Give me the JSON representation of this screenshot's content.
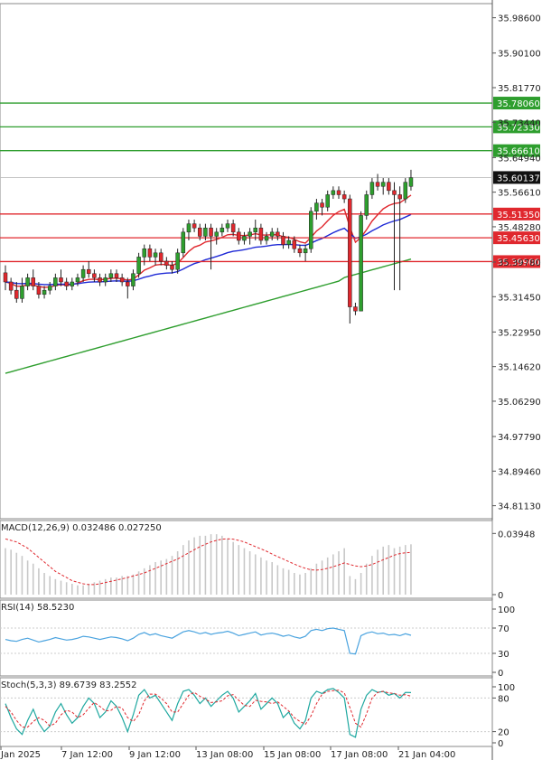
{
  "chart_data": {
    "type": "candlestick",
    "main_panel": {
      "price_axis_ticks": [
        "35.98600",
        "35.90100",
        "35.81770",
        "35.73440",
        "35.64940",
        "35.56610",
        "35.48280",
        "35.39780",
        "35.31450",
        "35.22950",
        "35.14620",
        "35.06290",
        "34.97790",
        "34.89460",
        "34.81130"
      ],
      "ylim": [
        34.78,
        36.02
      ],
      "current_price_label": "35.60137",
      "resistance_levels": [
        {
          "label": "35.78060",
          "value": 35.7806,
          "color": "#2e9e2e"
        },
        {
          "label": "35.72330",
          "value": 35.7233,
          "color": "#2e9e2e"
        },
        {
          "label": "35.66610",
          "value": 35.6661,
          "color": "#2e9e2e"
        }
      ],
      "support_levels": [
        {
          "label": "35.51350",
          "value": 35.5135,
          "color": "#e0282e"
        },
        {
          "label": "35.45630",
          "value": 35.4563,
          "color": "#e0282e"
        },
        {
          "label": "35.39900",
          "value": 35.399,
          "color": "#e0282e"
        }
      ],
      "candles": [
        {
          "o": 35.372,
          "h": 35.39,
          "l": 35.33,
          "c": 35.35
        },
        {
          "o": 35.35,
          "h": 35.36,
          "l": 35.32,
          "c": 35.33
        },
        {
          "o": 35.33,
          "h": 35.35,
          "l": 35.3,
          "c": 35.31
        },
        {
          "o": 35.31,
          "h": 35.36,
          "l": 35.3,
          "c": 35.34
        },
        {
          "o": 35.34,
          "h": 35.37,
          "l": 35.33,
          "c": 35.36
        },
        {
          "o": 35.36,
          "h": 35.38,
          "l": 35.33,
          "c": 35.34
        },
        {
          "o": 35.34,
          "h": 35.35,
          "l": 35.31,
          "c": 35.32
        },
        {
          "o": 35.32,
          "h": 35.34,
          "l": 35.31,
          "c": 35.33
        },
        {
          "o": 35.33,
          "h": 35.35,
          "l": 35.32,
          "c": 35.34
        },
        {
          "o": 35.34,
          "h": 35.37,
          "l": 35.33,
          "c": 35.36
        },
        {
          "o": 35.36,
          "h": 35.38,
          "l": 35.34,
          "c": 35.35
        },
        {
          "o": 35.35,
          "h": 35.36,
          "l": 35.33,
          "c": 35.34
        },
        {
          "o": 35.34,
          "h": 35.36,
          "l": 35.33,
          "c": 35.35
        },
        {
          "o": 35.35,
          "h": 35.37,
          "l": 35.34,
          "c": 35.36
        },
        {
          "o": 35.36,
          "h": 35.39,
          "l": 35.35,
          "c": 35.38
        },
        {
          "o": 35.38,
          "h": 35.4,
          "l": 35.36,
          "c": 35.37
        },
        {
          "o": 35.37,
          "h": 35.38,
          "l": 35.35,
          "c": 35.36
        },
        {
          "o": 35.36,
          "h": 35.37,
          "l": 35.34,
          "c": 35.35
        },
        {
          "o": 35.35,
          "h": 35.37,
          "l": 35.34,
          "c": 35.36
        },
        {
          "o": 35.36,
          "h": 35.38,
          "l": 35.35,
          "c": 35.37
        },
        {
          "o": 35.37,
          "h": 35.38,
          "l": 35.35,
          "c": 35.36
        },
        {
          "o": 35.36,
          "h": 35.37,
          "l": 35.34,
          "c": 35.35
        },
        {
          "o": 35.35,
          "h": 35.36,
          "l": 35.31,
          "c": 35.34
        },
        {
          "o": 35.34,
          "h": 35.38,
          "l": 35.33,
          "c": 35.37
        },
        {
          "o": 35.37,
          "h": 35.42,
          "l": 35.36,
          "c": 35.41
        },
        {
          "o": 35.41,
          "h": 35.44,
          "l": 35.39,
          "c": 35.43
        },
        {
          "o": 35.43,
          "h": 35.44,
          "l": 35.4,
          "c": 35.41
        },
        {
          "o": 35.41,
          "h": 35.43,
          "l": 35.39,
          "c": 35.42
        },
        {
          "o": 35.42,
          "h": 35.43,
          "l": 35.39,
          "c": 35.4
        },
        {
          "o": 35.4,
          "h": 35.41,
          "l": 35.38,
          "c": 35.39
        },
        {
          "o": 35.39,
          "h": 35.4,
          "l": 35.37,
          "c": 35.38
        },
        {
          "o": 35.38,
          "h": 35.43,
          "l": 35.37,
          "c": 35.42
        },
        {
          "o": 35.42,
          "h": 35.48,
          "l": 35.41,
          "c": 35.47
        },
        {
          "o": 35.47,
          "h": 35.5,
          "l": 35.45,
          "c": 35.49
        },
        {
          "o": 35.49,
          "h": 35.5,
          "l": 35.47,
          "c": 35.48
        },
        {
          "o": 35.48,
          "h": 35.49,
          "l": 35.45,
          "c": 35.46
        },
        {
          "o": 35.46,
          "h": 35.49,
          "l": 35.45,
          "c": 35.48
        },
        {
          "o": 35.48,
          "h": 35.49,
          "l": 35.38,
          "c": 35.46
        },
        {
          "o": 35.46,
          "h": 35.48,
          "l": 35.44,
          "c": 35.47
        },
        {
          "o": 35.47,
          "h": 35.49,
          "l": 35.46,
          "c": 35.48
        },
        {
          "o": 35.48,
          "h": 35.5,
          "l": 35.47,
          "c": 35.49
        },
        {
          "o": 35.49,
          "h": 35.5,
          "l": 35.46,
          "c": 35.47
        },
        {
          "o": 35.47,
          "h": 35.48,
          "l": 35.44,
          "c": 35.45
        },
        {
          "o": 35.45,
          "h": 35.47,
          "l": 35.44,
          "c": 35.46
        },
        {
          "o": 35.46,
          "h": 35.48,
          "l": 35.44,
          "c": 35.47
        },
        {
          "o": 35.47,
          "h": 35.5,
          "l": 35.45,
          "c": 35.48
        },
        {
          "o": 35.48,
          "h": 35.49,
          "l": 35.44,
          "c": 35.45
        },
        {
          "o": 35.45,
          "h": 35.47,
          "l": 35.44,
          "c": 35.46
        },
        {
          "o": 35.46,
          "h": 35.48,
          "l": 35.45,
          "c": 35.47
        },
        {
          "o": 35.47,
          "h": 35.48,
          "l": 35.45,
          "c": 35.46
        },
        {
          "o": 35.46,
          "h": 35.47,
          "l": 35.43,
          "c": 35.44
        },
        {
          "o": 35.44,
          "h": 35.46,
          "l": 35.43,
          "c": 35.45
        },
        {
          "o": 35.45,
          "h": 35.46,
          "l": 35.42,
          "c": 35.43
        },
        {
          "o": 35.43,
          "h": 35.44,
          "l": 35.41,
          "c": 35.42
        },
        {
          "o": 35.42,
          "h": 35.44,
          "l": 35.4,
          "c": 35.43
        },
        {
          "o": 35.43,
          "h": 35.53,
          "l": 35.42,
          "c": 35.52
        },
        {
          "o": 35.52,
          "h": 35.55,
          "l": 35.5,
          "c": 35.54
        },
        {
          "o": 35.54,
          "h": 35.55,
          "l": 35.51,
          "c": 35.53
        },
        {
          "o": 35.53,
          "h": 35.57,
          "l": 35.52,
          "c": 35.56
        },
        {
          "o": 35.56,
          "h": 35.58,
          "l": 35.55,
          "c": 35.57
        },
        {
          "o": 35.57,
          "h": 35.58,
          "l": 35.55,
          "c": 35.56
        },
        {
          "o": 35.56,
          "h": 35.57,
          "l": 35.54,
          "c": 35.55
        },
        {
          "o": 35.55,
          "h": 35.56,
          "l": 35.25,
          "c": 35.29
        },
        {
          "o": 35.29,
          "h": 35.3,
          "l": 35.27,
          "c": 35.28
        },
        {
          "o": 35.28,
          "h": 35.52,
          "l": 35.28,
          "c": 35.51
        },
        {
          "o": 35.51,
          "h": 35.57,
          "l": 35.5,
          "c": 35.56
        },
        {
          "o": 35.56,
          "h": 35.6,
          "l": 35.55,
          "c": 35.59
        },
        {
          "o": 35.59,
          "h": 35.61,
          "l": 35.57,
          "c": 35.58
        },
        {
          "o": 35.58,
          "h": 35.6,
          "l": 35.56,
          "c": 35.59
        },
        {
          "o": 35.59,
          "h": 35.6,
          "l": 35.56,
          "c": 35.57
        },
        {
          "o": 35.57,
          "h": 35.59,
          "l": 35.33,
          "c": 35.56
        },
        {
          "o": 35.56,
          "h": 35.58,
          "l": 35.33,
          "c": 35.55
        },
        {
          "o": 35.55,
          "h": 35.6,
          "l": 35.54,
          "c": 35.59
        },
        {
          "o": 35.58,
          "h": 35.62,
          "l": 35.57,
          "c": 35.601
        }
      ]
    },
    "macd_panel": {
      "label": "MACD(12,26,9) 0.032486 0.027250",
      "axis_ticks": [
        "0.03948",
        "0"
      ],
      "ylim": [
        0,
        0.042
      ],
      "histogram": [
        0.03,
        0.029,
        0.027,
        0.025,
        0.022,
        0.02,
        0.017,
        0.014,
        0.012,
        0.01,
        0.009,
        0.008,
        0.007,
        0.006,
        0.006,
        0.007,
        0.008,
        0.009,
        0.01,
        0.011,
        0.011,
        0.012,
        0.012,
        0.013,
        0.015,
        0.017,
        0.019,
        0.021,
        0.022,
        0.023,
        0.025,
        0.028,
        0.032,
        0.035,
        0.037,
        0.038,
        0.038,
        0.039,
        0.039,
        0.038,
        0.036,
        0.034,
        0.032,
        0.03,
        0.028,
        0.026,
        0.024,
        0.022,
        0.021,
        0.019,
        0.017,
        0.016,
        0.014,
        0.013,
        0.014,
        0.017,
        0.02,
        0.022,
        0.024,
        0.026,
        0.028,
        0.03,
        0.012,
        0.01,
        0.014,
        0.02,
        0.025,
        0.029,
        0.031,
        0.032,
        0.03,
        0.031,
        0.032,
        0.0325
      ],
      "signal": [
        0.036,
        0.035,
        0.034,
        0.032,
        0.03,
        0.027,
        0.024,
        0.021,
        0.018,
        0.015,
        0.013,
        0.011,
        0.009,
        0.008,
        0.007,
        0.0065,
        0.0065,
        0.007,
        0.0078,
        0.0086,
        0.0094,
        0.0102,
        0.011,
        0.012,
        0.013,
        0.014,
        0.0155,
        0.017,
        0.0185,
        0.02,
        0.0215,
        0.023,
        0.025,
        0.027,
        0.029,
        0.031,
        0.0325,
        0.034,
        0.035,
        0.0358,
        0.036,
        0.0358,
        0.035,
        0.034,
        0.0325,
        0.031,
        0.0295,
        0.028,
        0.0262,
        0.0245,
        0.023,
        0.0213,
        0.0197,
        0.0182,
        0.017,
        0.016,
        0.0158,
        0.0162,
        0.017,
        0.018,
        0.0192,
        0.0205,
        0.0195,
        0.0185,
        0.018,
        0.0185,
        0.0195,
        0.021,
        0.0225,
        0.024,
        0.0255,
        0.0265,
        0.027,
        0.02725
      ]
    },
    "rsi_panel": {
      "label": "RSI(14) 58.5230",
      "axis_ticks": [
        "100",
        "70",
        "30",
        "0"
      ],
      "ylim": [
        0,
        100
      ],
      "values": [
        52,
        50,
        49,
        52,
        54,
        51,
        48,
        50,
        52,
        55,
        53,
        51,
        52,
        54,
        57,
        56,
        54,
        52,
        54,
        56,
        55,
        53,
        50,
        54,
        60,
        63,
        59,
        61,
        58,
        56,
        54,
        59,
        64,
        66,
        64,
        61,
        63,
        60,
        62,
        63,
        65,
        62,
        58,
        60,
        62,
        64,
        59,
        61,
        62,
        60,
        57,
        59,
        56,
        54,
        57,
        66,
        68,
        66,
        69,
        70,
        68,
        66,
        30,
        29,
        58,
        62,
        64,
        61,
        62,
        59,
        60,
        58,
        61,
        58.5
      ]
    },
    "stoch_panel": {
      "label": "Stoch(5,3,3) 89.6739 83.2552",
      "axis_ticks": [
        "100",
        "80",
        "20",
        "0"
      ],
      "ylim": [
        0,
        100
      ],
      "main": [
        70,
        45,
        25,
        15,
        40,
        60,
        35,
        20,
        30,
        55,
        70,
        50,
        35,
        45,
        65,
        80,
        70,
        45,
        55,
        75,
        65,
        45,
        20,
        50,
        85,
        95,
        80,
        85,
        70,
        55,
        40,
        70,
        92,
        95,
        85,
        70,
        80,
        65,
        75,
        85,
        92,
        80,
        55,
        65,
        75,
        88,
        60,
        70,
        80,
        70,
        45,
        55,
        35,
        25,
        40,
        80,
        92,
        88,
        95,
        97,
        90,
        80,
        15,
        10,
        60,
        85,
        95,
        90,
        92,
        85,
        88,
        80,
        90,
        89.67
      ],
      "signal": [
        65,
        55,
        40,
        28,
        28,
        38,
        45,
        40,
        30,
        35,
        50,
        58,
        55,
        45,
        50,
        62,
        72,
        65,
        57,
        58,
        65,
        62,
        45,
        38,
        50,
        75,
        87,
        87,
        80,
        70,
        55,
        55,
        70,
        85,
        90,
        83,
        78,
        72,
        73,
        75,
        84,
        86,
        76,
        67,
        65,
        76,
        74,
        73,
        70,
        73,
        65,
        57,
        45,
        38,
        33,
        48,
        70,
        87,
        92,
        93,
        94,
        89,
        63,
        35,
        28,
        52,
        80,
        90,
        92,
        89,
        88,
        85,
        86,
        83.26
      ]
    },
    "time_axis_labels": [
      "Jan 2025",
      "7 Jan 12:00",
      "9 Jan 12:00",
      "13 Jan 08:00",
      "15 Jan 08:00",
      "17 Jan 08:00",
      "21 Jan 04:00"
    ],
    "moving_averages": [
      {
        "color": "#e0282e"
      },
      {
        "color": "#1f2ad6"
      },
      {
        "color": "#2e9e2e"
      }
    ],
    "colors": {
      "bull": "#2e9e2e",
      "bear": "#e0282e",
      "wick": "#222222",
      "macd_hist": "#c8c8c8",
      "macd_signal": "#e0282e",
      "rsi": "#4aa3df",
      "stoch_main": "#1fa8a0",
      "stoch_signal": "#e0282e"
    }
  }
}
